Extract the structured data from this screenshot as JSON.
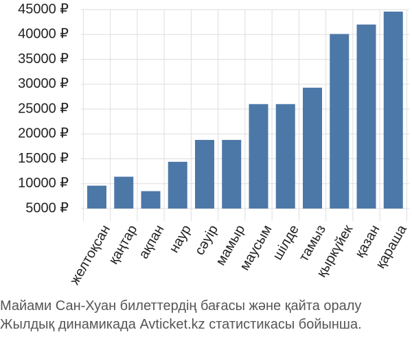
{
  "colors": {
    "bar": "#4c78a8",
    "grid": "#dddddd",
    "axis_text": "#222222",
    "caption_text": "#555555"
  },
  "chart_data": {
    "type": "bar",
    "categories": [
      "желтоқсан",
      "қаңтар",
      "ақпан",
      "наур",
      "сәуір",
      "мамыр",
      "маусым",
      "шілде",
      "тамыз",
      "қыркүйек",
      "қазан",
      "қараша"
    ],
    "values": [
      9600,
      11400,
      8500,
      14400,
      18800,
      18800,
      26000,
      26000,
      29300,
      40100,
      42000,
      44600
    ],
    "ylim": [
      5000,
      45000
    ],
    "yticks": [
      5000,
      10000,
      15000,
      20000,
      25000,
      30000,
      35000,
      40000,
      45000
    ],
    "ytick_labels": [
      "5000 ₽",
      "10000 ₽",
      "15000 ₽",
      "20000 ₽",
      "25000 ₽",
      "30000 ₽",
      "35000 ₽",
      "40000 ₽",
      "45000 ₽"
    ],
    "grid": true,
    "title": "",
    "xlabel": "",
    "ylabel": ""
  },
  "caption": {
    "line1": "Майами Сан-Хуан билеттердің бағасы және қайта оралу",
    "line2": "Жылдық динамикада Avticket.kz статистикасы бойынша."
  }
}
